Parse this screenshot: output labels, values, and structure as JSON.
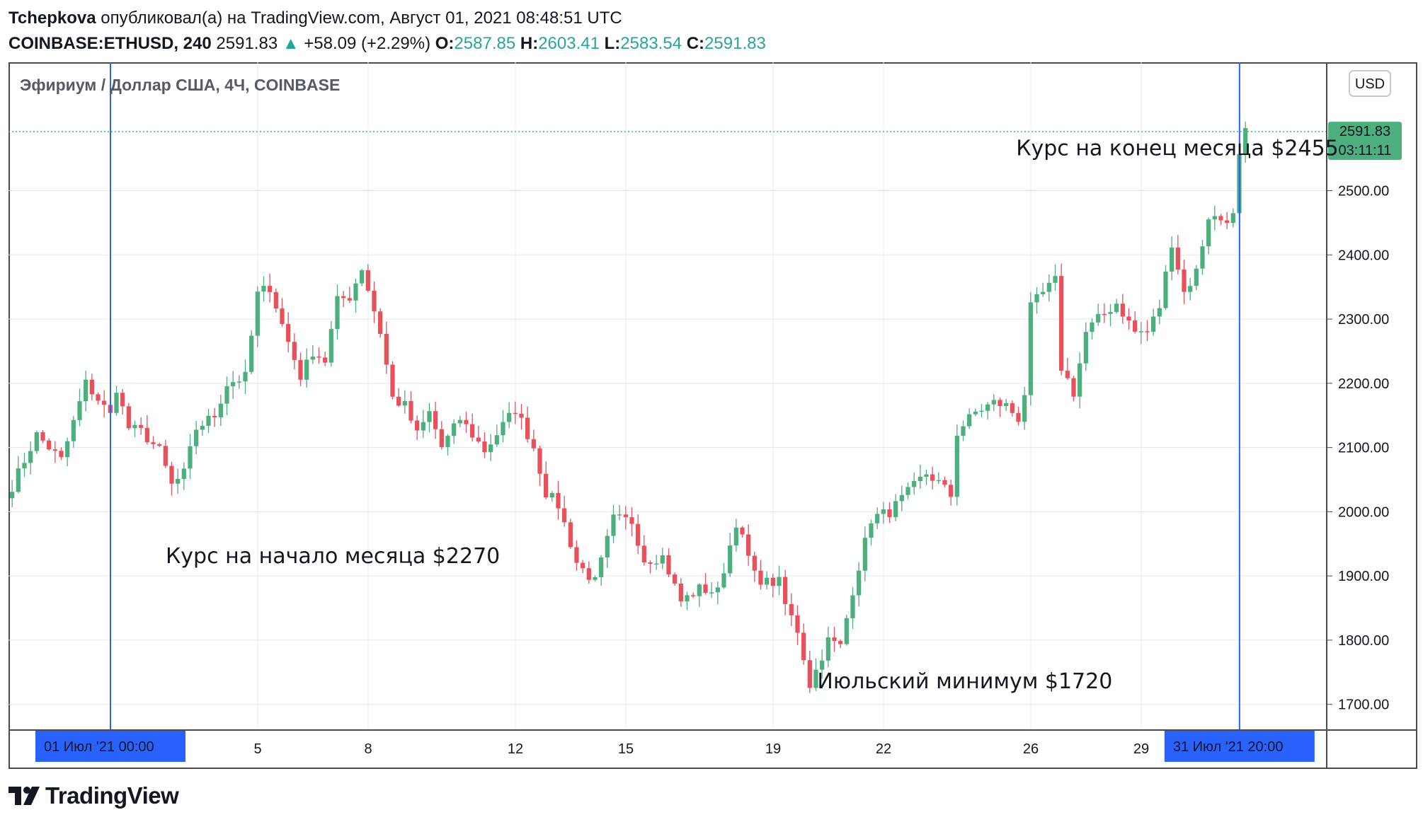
{
  "header": {
    "author": "Tchepkova",
    "published": "опубликовал(а) на TradingView.com, Август 01, 2021 08:48:51 UTC",
    "symbol": "COINBASE:ETHUSD, 240",
    "last": "2591.83",
    "arrow": "▲",
    "change": "+58.09 (+2.29%)",
    "o_label": "O:",
    "o": "2587.85",
    "h_label": "H:",
    "h": "2603.41",
    "l_label": "L:",
    "l": "2583.54",
    "c_label": "C:",
    "c": "2591.83"
  },
  "footer": {
    "brand": "TradingView",
    "logo_icon": "tradingview-logo-icon"
  },
  "chart_data": {
    "type": "candlestick",
    "title": "Эфириум / Доллар США, 4Ч, COINBASE",
    "currency_button": "USD",
    "ylim": [
      1660,
      2700
    ],
    "yticks": [
      1700,
      1800,
      1900,
      2000,
      2100,
      2200,
      2300,
      2400,
      2500
    ],
    "ytick_labels": [
      "1700.00",
      "1800.00",
      "1900.00",
      "2000.00",
      "2100.00",
      "2200.00",
      "2300.00",
      "2400.00",
      "2500.00"
    ],
    "xticks": [
      {
        "label": "5",
        "day": 5
      },
      {
        "label": "8",
        "day": 8
      },
      {
        "label": "12",
        "day": 12
      },
      {
        "label": "15",
        "day": 15
      },
      {
        "label": "19",
        "day": 19
      },
      {
        "label": "22",
        "day": 22
      },
      {
        "label": "26",
        "day": 26
      },
      {
        "label": "29",
        "day": 29
      }
    ],
    "markers": [
      {
        "day": 1,
        "date": "01 Июл '21",
        "time": "00:00"
      },
      {
        "day": 31.67,
        "date": "31 Июл '21",
        "time": "20:00"
      }
    ],
    "last_price": {
      "value": 2591.83,
      "label": "2591.83",
      "countdown": "03:11:11"
    },
    "annotations": [
      {
        "text": "Курс на начало месяца $2270",
        "day": 2.5,
        "price": 1920
      },
      {
        "text": "Июльский минимум $1720",
        "day": 20.2,
        "price": 1725
      },
      {
        "text": "Курс на конец месяца $2455",
        "day": 25.6,
        "price": 2555
      }
    ],
    "colors": {
      "up": "#26a69a",
      "down": "#ef5350",
      "candle_up": "#4caf7d",
      "candle_down": "#e8505b",
      "marker": "#2962ff",
      "grid": "#e3e8f0"
    },
    "keypoints": [
      [
        -1.67,
        2040
      ],
      [
        -1.0,
        2120
      ],
      [
        -0.33,
        2080
      ],
      [
        0.33,
        2200
      ],
      [
        1.0,
        2150
      ],
      [
        1.0,
        2275
      ],
      [
        1.17,
        2190
      ],
      [
        1.5,
        2130
      ],
      [
        1.83,
        2125
      ],
      [
        2.33,
        2095
      ],
      [
        2.67,
        2040
      ],
      [
        3.0,
        2060
      ],
      [
        3.33,
        2130
      ],
      [
        3.83,
        2150
      ],
      [
        4.17,
        2200
      ],
      [
        4.67,
        2210
      ],
      [
        5.0,
        2340
      ],
      [
        5.33,
        2350
      ],
      [
        5.67,
        2290
      ],
      [
        6.17,
        2210
      ],
      [
        6.5,
        2250
      ],
      [
        6.83,
        2235
      ],
      [
        7.17,
        2330
      ],
      [
        7.5,
        2335
      ],
      [
        7.83,
        2380
      ],
      [
        8.33,
        2280
      ],
      [
        8.67,
        2175
      ],
      [
        9.0,
        2165
      ],
      [
        9.33,
        2120
      ],
      [
        9.67,
        2155
      ],
      [
        10.0,
        2100
      ],
      [
        10.5,
        2145
      ],
      [
        10.83,
        2120
      ],
      [
        11.17,
        2095
      ],
      [
        11.67,
        2135
      ],
      [
        12.0,
        2160
      ],
      [
        12.17,
        2140
      ],
      [
        12.5,
        2100
      ],
      [
        12.83,
        2030
      ],
      [
        13.17,
        2010
      ],
      [
        13.67,
        1920
      ],
      [
        14.17,
        1890
      ],
      [
        14.67,
        1990
      ],
      [
        15.17,
        1985
      ],
      [
        15.5,
        1925
      ],
      [
        16.0,
        1930
      ],
      [
        16.5,
        1860
      ],
      [
        17.0,
        1880
      ],
      [
        17.5,
        1875
      ],
      [
        18.0,
        1985
      ],
      [
        18.5,
        1900
      ],
      [
        18.83,
        1890
      ],
      [
        19.17,
        1890
      ],
      [
        19.33,
        1855
      ],
      [
        19.67,
        1815
      ],
      [
        20.0,
        1730
      ],
      [
        20.5,
        1800
      ],
      [
        20.83,
        1790
      ],
      [
        21.17,
        1880
      ],
      [
        21.67,
        1990
      ],
      [
        22.17,
        2000
      ],
      [
        22.67,
        2030
      ],
      [
        23.17,
        2060
      ],
      [
        23.5,
        2045
      ],
      [
        23.83,
        2025
      ],
      [
        24.0,
        2125
      ],
      [
        24.5,
        2155
      ],
      [
        25.0,
        2170
      ],
      [
        25.33,
        2165
      ],
      [
        25.67,
        2145
      ],
      [
        25.83,
        2185
      ],
      [
        26.0,
        2320
      ],
      [
        26.33,
        2340
      ],
      [
        26.67,
        2360
      ],
      [
        26.83,
        2225
      ],
      [
        27.17,
        2185
      ],
      [
        27.5,
        2280
      ],
      [
        27.83,
        2300
      ],
      [
        28.33,
        2325
      ],
      [
        28.83,
        2280
      ],
      [
        29.17,
        2280
      ],
      [
        29.5,
        2320
      ],
      [
        29.83,
        2420
      ],
      [
        30.17,
        2340
      ],
      [
        30.5,
        2375
      ],
      [
        30.83,
        2460
      ],
      [
        31.17,
        2455
      ],
      [
        31.5,
        2460
      ],
      [
        31.67,
        2555
      ],
      [
        31.83,
        2590
      ]
    ]
  }
}
